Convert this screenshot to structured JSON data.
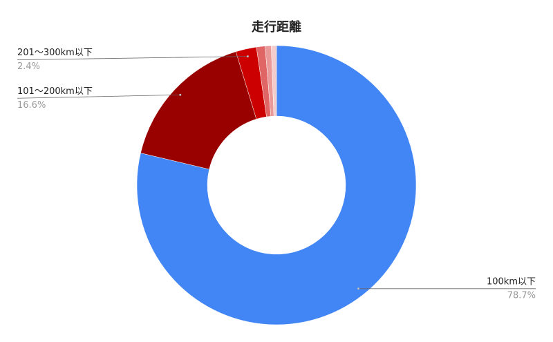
{
  "chart_data": {
    "type": "donut",
    "title": "走行距離",
    "categories": [
      "100km以下",
      "101〜200km以下",
      "201〜300km以下",
      null,
      null,
      null
    ],
    "values": [
      78.7,
      16.6,
      2.4,
      1.0,
      0.7,
      0.6
    ],
    "value_labels": [
      "78.7%",
      "16.6%",
      "2.4%",
      null,
      null,
      null
    ],
    "colors": [
      "#4285f4",
      "#990000",
      "#cc0000",
      "#e06666",
      "#ea9999",
      "#f4cccc"
    ]
  }
}
